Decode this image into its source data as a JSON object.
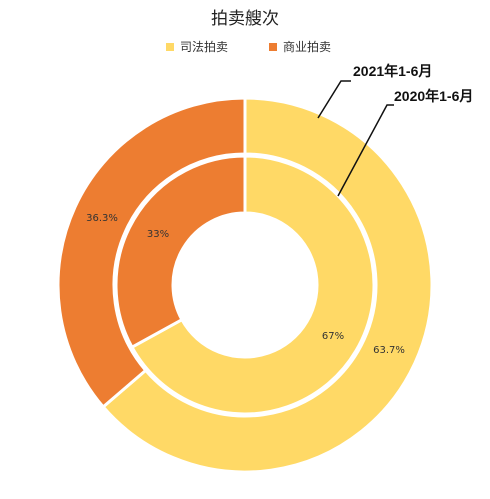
{
  "chart_data": {
    "type": "pie",
    "subtype": "doughnut",
    "title": "拍卖艘次",
    "legend_position": "top",
    "categories": [
      "司法拍卖",
      "商业拍卖"
    ],
    "colors": [
      "#FFD966",
      "#ED7D31"
    ],
    "series": [
      {
        "name": "2021年1-6月",
        "ring": "outer",
        "values": [
          63.7,
          36.3
        ],
        "labels": [
          "63.7%",
          "36.3%"
        ]
      },
      {
        "name": "2020年1-6月",
        "ring": "inner",
        "values": [
          67,
          33
        ],
        "labels": [
          "67%",
          "33%"
        ]
      }
    ]
  }
}
